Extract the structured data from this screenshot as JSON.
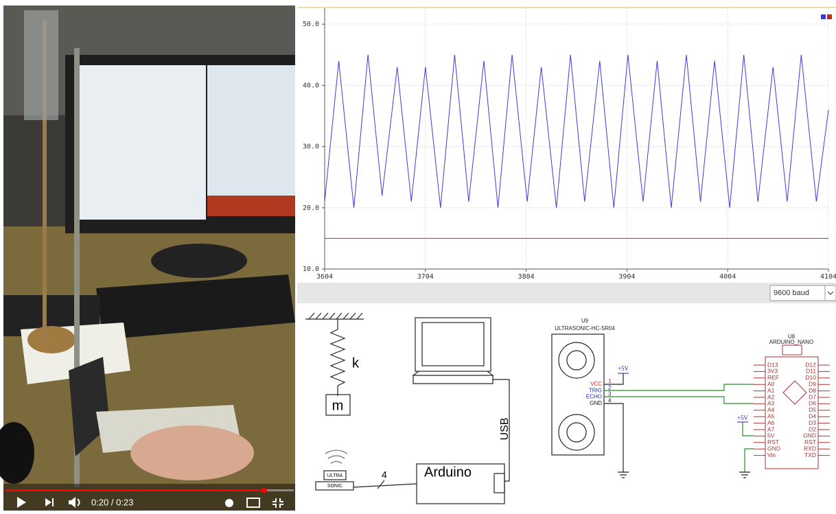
{
  "video_player": {
    "time": "0:20 / 0:23"
  },
  "chart_data": {
    "type": "line",
    "xlim": [
      3604,
      4104
    ],
    "ylim": [
      10,
      52.6
    ],
    "xticks": [
      3604,
      3704,
      3804,
      3904,
      4004,
      4104
    ],
    "yticks": [
      {
        "value": 10,
        "label": "10.0"
      },
      {
        "value": 20,
        "label": "20.0"
      },
      {
        "value": 30,
        "label": "30.0"
      },
      {
        "value": 40,
        "label": "40.0"
      },
      {
        "value": 50,
        "label": "50.0"
      }
    ],
    "grid": true,
    "legend": "upper right",
    "series": [
      {
        "color": "#3a3ae0",
        "x": [
          3604,
          3618,
          3633,
          3647,
          3661,
          3676,
          3690,
          3704,
          3719,
          3733,
          3747,
          3762,
          3776,
          3790,
          3805,
          3819,
          3834,
          3848,
          3862,
          3877,
          3891,
          3905,
          3920,
          3934,
          3948,
          3963,
          3977,
          3991,
          4006,
          4020,
          4034,
          4049,
          4063,
          4077,
          4092,
          4104
        ],
        "values": [
          21,
          44,
          20,
          45,
          22,
          43,
          21,
          43,
          20,
          45,
          21,
          44,
          20,
          45,
          21,
          43,
          20,
          45,
          21,
          44,
          20,
          45,
          21,
          44,
          20,
          45,
          21,
          44,
          20,
          45,
          21,
          43,
          21,
          45,
          21,
          36
        ]
      },
      {
        "color": "#cc2222",
        "x": [
          3604,
          4104
        ],
        "values": [
          15,
          15
        ]
      }
    ]
  },
  "baud_select": "9600 baud",
  "schematic": {
    "spring_label": "k",
    "mass_label": "m",
    "cable_label": "USB",
    "board_label": "Arduino",
    "wire_count": "4",
    "sensor_label": [
      "ULTRA",
      "SONIC"
    ],
    "sensor": {
      "ref": "U9",
      "part": "ULTRASONIC-HC-SR04",
      "pins": [
        {
          "name": "VCC",
          "number": "1"
        },
        {
          "name": "TRIG",
          "number": "2"
        },
        {
          "name": "ECHO",
          "number": "3"
        },
        {
          "name": "GND",
          "number": "4"
        }
      ]
    },
    "power_labels": [
      "+5V",
      "+5V"
    ],
    "nano": {
      "ref": "U8",
      "part": "ARDUINO_NANO",
      "left_pins": [
        "D13",
        "3V3",
        "REF",
        "A0",
        "A1",
        "A2",
        "A3",
        "A4",
        "A5",
        "A6",
        "A7",
        "5V",
        "RST",
        "GND",
        "Vin"
      ],
      "right_pins": [
        "D12",
        "D11",
        "D10",
        "D9",
        "D8",
        "D7",
        "D6",
        "D5",
        "D4",
        "D3",
        "D2",
        "GND",
        "RST",
        "RXD",
        "TXD"
      ]
    }
  }
}
